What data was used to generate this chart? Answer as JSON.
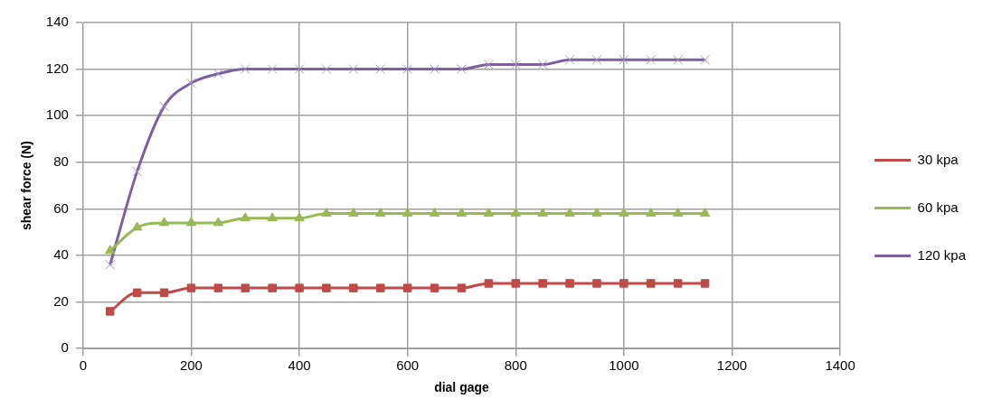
{
  "chart_data": {
    "type": "line",
    "xlabel": "dial gage",
    "ylabel": "shear force (N)",
    "x": [
      50,
      100,
      150,
      200,
      250,
      300,
      350,
      400,
      450,
      500,
      550,
      600,
      650,
      700,
      750,
      800,
      850,
      900,
      950,
      1000,
      1050,
      1100,
      1150
    ],
    "series": [
      {
        "name": "30 kpa",
        "color": "#be4b48",
        "marker": "square",
        "values": [
          16,
          24,
          24,
          26,
          26,
          26,
          26,
          26,
          26,
          26,
          26,
          26,
          26,
          26,
          28,
          28,
          28,
          28,
          28,
          28,
          28,
          28,
          28
        ]
      },
      {
        "name": "60 kpa",
        "color": "#98b954",
        "marker": "triangle",
        "values": [
          42,
          52,
          54,
          54,
          54,
          56,
          56,
          56,
          58,
          58,
          58,
          58,
          58,
          58,
          58,
          58,
          58,
          58,
          58,
          58,
          58,
          58,
          58
        ]
      },
      {
        "name": "120 kpa",
        "color": "#7d60a0",
        "marker": "cross",
        "values": [
          36,
          76,
          104,
          114,
          118,
          120,
          120,
          120,
          120,
          120,
          120,
          120,
          120,
          120,
          122,
          122,
          122,
          124,
          124,
          124,
          124,
          124,
          124
        ]
      }
    ],
    "xlim": [
      0,
      1400
    ],
    "xticks": [
      0,
      200,
      400,
      600,
      800,
      1000,
      1200,
      1400
    ],
    "ylim": [
      0,
      140
    ],
    "yticks": [
      0,
      20,
      40,
      60,
      80,
      100,
      120,
      140
    ],
    "grid": true,
    "legend": "right",
    "line_style": "solid"
  }
}
